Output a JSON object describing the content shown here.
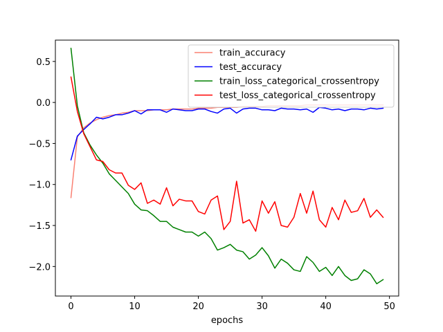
{
  "chart_data": {
    "type": "line",
    "xlabel": "epochs",
    "ylabel": "",
    "title": "",
    "xlim": [
      -2.45,
      51.45
    ],
    "ylim": [
      -2.36,
      0.76
    ],
    "xticks": [
      0,
      10,
      20,
      30,
      40,
      50
    ],
    "yticks": [
      -2.0,
      -1.5,
      -1.0,
      -0.5,
      0.0,
      0.5
    ],
    "xtick_labels": [
      "0",
      "10",
      "20",
      "30",
      "40",
      "50"
    ],
    "ytick_labels": [
      "−2.0",
      "−1.5",
      "−1.0",
      "−0.5",
      "0.0",
      "0.5"
    ],
    "grid": false,
    "legend_position": "upper right",
    "x": [
      0,
      1,
      2,
      3,
      4,
      5,
      6,
      7,
      8,
      9,
      10,
      11,
      12,
      13,
      14,
      15,
      16,
      17,
      18,
      19,
      20,
      21,
      22,
      23,
      24,
      25,
      26,
      27,
      28,
      29,
      30,
      31,
      32,
      33,
      34,
      35,
      36,
      37,
      38,
      39,
      40,
      41,
      42,
      43,
      44,
      45,
      46,
      47,
      48,
      49
    ],
    "series": [
      {
        "name": "train_accuracy",
        "color": "#fa8072",
        "values": [
          -1.16,
          -0.42,
          -0.31,
          -0.25,
          -0.21,
          -0.18,
          -0.16,
          -0.15,
          -0.13,
          -0.12,
          -0.1,
          -0.1,
          -0.1,
          -0.09,
          -0.09,
          -0.09,
          -0.08,
          -0.08,
          -0.08,
          -0.08,
          -0.07,
          -0.07,
          -0.07,
          -0.06,
          -0.06,
          -0.06,
          -0.06,
          -0.05,
          -0.05,
          -0.05,
          -0.05,
          -0.04,
          -0.04,
          -0.04,
          -0.04,
          -0.04,
          -0.04,
          -0.03,
          -0.03,
          -0.03,
          -0.03,
          -0.03,
          -0.03,
          -0.03,
          -0.03,
          -0.03,
          -0.03,
          -0.03,
          -0.03,
          -0.03
        ]
      },
      {
        "name": "test_accuracy",
        "color": "#0000ff",
        "values": [
          -0.7,
          -0.41,
          -0.33,
          -0.26,
          -0.18,
          -0.2,
          -0.18,
          -0.15,
          -0.15,
          -0.13,
          -0.1,
          -0.14,
          -0.09,
          -0.09,
          -0.09,
          -0.12,
          -0.08,
          -0.09,
          -0.1,
          -0.1,
          -0.08,
          -0.08,
          -0.11,
          -0.13,
          -0.08,
          -0.07,
          -0.13,
          -0.08,
          -0.07,
          -0.07,
          -0.09,
          -0.09,
          -0.1,
          -0.07,
          -0.08,
          -0.08,
          -0.09,
          -0.08,
          -0.12,
          -0.06,
          -0.07,
          -0.09,
          -0.08,
          -0.1,
          -0.08,
          -0.08,
          -0.09,
          -0.07,
          -0.08,
          -0.07
        ]
      },
      {
        "name": "train_loss_categorical_crossentropy",
        "color": "#008000",
        "values": [
          0.66,
          -0.04,
          -0.37,
          -0.52,
          -0.64,
          -0.74,
          -0.87,
          -0.95,
          -1.03,
          -1.11,
          -1.24,
          -1.31,
          -1.32,
          -1.38,
          -1.45,
          -1.45,
          -1.52,
          -1.55,
          -1.58,
          -1.58,
          -1.63,
          -1.58,
          -1.66,
          -1.8,
          -1.77,
          -1.73,
          -1.8,
          -1.82,
          -1.91,
          -1.86,
          -1.77,
          -1.87,
          -2.02,
          -1.91,
          -1.96,
          -2.04,
          -2.06,
          -1.88,
          -1.95,
          -2.06,
          -2.01,
          -2.11,
          -2.0,
          -2.11,
          -2.17,
          -2.15,
          -2.04,
          -2.09,
          -2.21,
          -2.16
        ]
      },
      {
        "name": "test_loss_categorical_crossentropy",
        "color": "#ff0000",
        "values": [
          0.31,
          -0.11,
          -0.38,
          -0.54,
          -0.7,
          -0.72,
          -0.82,
          -0.86,
          -0.86,
          -1.01,
          -1.06,
          -0.98,
          -1.23,
          -1.19,
          -1.24,
          -1.04,
          -1.26,
          -1.18,
          -1.2,
          -1.2,
          -1.33,
          -1.36,
          -1.19,
          -1.14,
          -1.55,
          -1.45,
          -0.96,
          -1.47,
          -1.43,
          -1.57,
          -1.2,
          -1.35,
          -1.21,
          -1.5,
          -1.52,
          -1.4,
          -1.11,
          -1.35,
          -1.08,
          -1.43,
          -1.52,
          -1.28,
          -1.43,
          -1.19,
          -1.34,
          -1.32,
          -1.17,
          -1.4,
          -1.31,
          -1.4
        ]
      }
    ]
  }
}
